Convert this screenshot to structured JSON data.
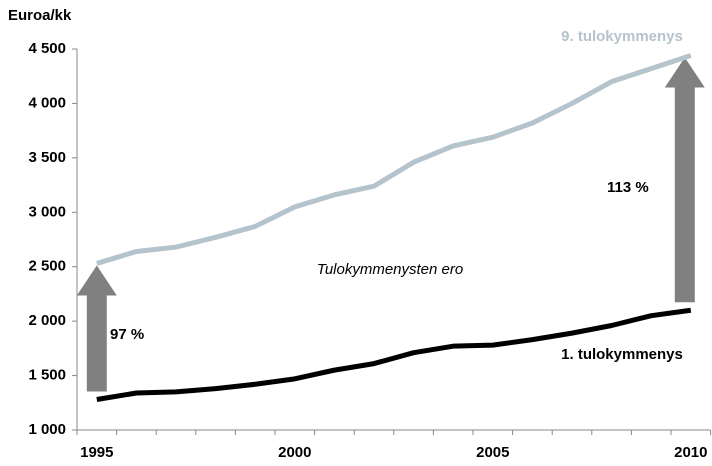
{
  "chart_data": {
    "type": "line",
    "y_label": "Euroa/kk",
    "categories": [
      "1995",
      null,
      null,
      null,
      null,
      "2000",
      null,
      null,
      null,
      null,
      "2005",
      null,
      null,
      null,
      null,
      "2010"
    ],
    "series": [
      {
        "name": "9. tulokymmenys",
        "color": "#b4c3cc",
        "values": [
          2530,
          2640,
          2680,
          2770,
          2870,
          3050,
          3160,
          3240,
          3460,
          3610,
          3690,
          3820,
          4000,
          4200,
          4320,
          4440
        ]
      },
      {
        "name": "1. tulokymmenys",
        "color": "#000000",
        "values": [
          1280,
          1340,
          1350,
          1380,
          1420,
          1470,
          1550,
          1610,
          1710,
          1770,
          1780,
          1830,
          1890,
          1960,
          2050,
          2100
        ]
      }
    ],
    "ylim": [
      1000,
      4500
    ],
    "yticks": [
      {
        "value": 1000,
        "label": "1 000"
      },
      {
        "value": 1500,
        "label": "1 500"
      },
      {
        "value": 2000,
        "label": "2 000"
      },
      {
        "value": 2500,
        "label": "2 500"
      },
      {
        "value": 3000,
        "label": "3 000"
      },
      {
        "value": 3500,
        "label": "3 500"
      },
      {
        "value": 4000,
        "label": "4 000"
      },
      {
        "value": 4500,
        "label": "4 500"
      }
    ],
    "annotations": [
      "97 %",
      "113 %",
      "Tulokymmenysten ero"
    ]
  }
}
